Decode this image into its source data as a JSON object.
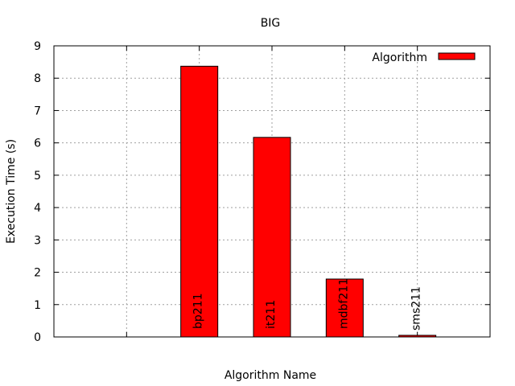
{
  "chart_data": {
    "type": "bar",
    "title": "BIG",
    "xlabel": "Algorithm Name",
    "ylabel": "Execution Time (s)",
    "categories": [
      "",
      "bp211",
      "it211",
      "mdbf211",
      "sms211"
    ],
    "series": [
      {
        "name": "Algorithm",
        "values": [
          null,
          8.37,
          6.17,
          1.79,
          0.05
        ],
        "color": "#ff0000"
      }
    ],
    "ylim": [
      0,
      9
    ],
    "yticks": [
      0,
      1,
      2,
      3,
      4,
      5,
      6,
      7,
      8,
      9
    ],
    "grid": true,
    "legend_position": "top-right",
    "bar_label_rotation": "vertical"
  }
}
